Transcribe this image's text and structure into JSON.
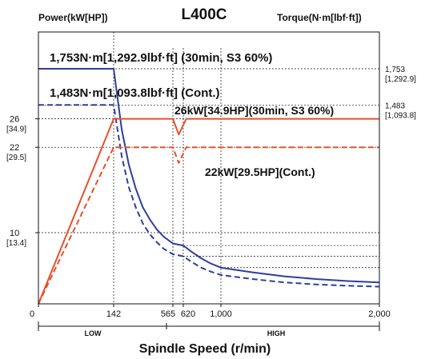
{
  "chart_data": {
    "type": "line",
    "title": "L400C",
    "left_axis_label": "Power(kW[HP])",
    "right_axis_label": "Torque(N·m[lbf·ft])",
    "xlabel": "Spindle Speed (r/min)",
    "xlim": [
      0,
      2000
    ],
    "x_ticks": [
      "0",
      "142",
      "565",
      "620",
      "1,000",
      "2,000"
    ],
    "power_ticks": [
      {
        "kw": 26,
        "label": "26",
        "sub": "[34.9]"
      },
      {
        "kw": 22,
        "label": "22",
        "sub": "[29.5]"
      },
      {
        "kw": 10,
        "label": "10",
        "sub": "[13.4]"
      }
    ],
    "torque_ticks": [
      {
        "nm": 1753,
        "label": "1,753",
        "sub": "[1,292.9]"
      },
      {
        "nm": 1483,
        "label": "1,483",
        "sub": "[1,093.8]"
      }
    ],
    "gear_ranges": [
      "LOW",
      "HIGH"
    ],
    "annotations": [
      "1,753N·m[1,292.9lbf·ft] (30min, S3 60%)",
      "1,483N·m[1,093.8lbf·ft] (Cont.)",
      "26kW[34.9HP](30min, S3 60%)",
      "22kW[29.5HP](Cont.)"
    ],
    "colors": {
      "torque": "#2e3f9c",
      "power": "#e8502a"
    },
    "series": [
      {
        "name": "Torque (30min, S3 60%)",
        "axis": "torque",
        "style": "solid",
        "color": "#2e3f9c",
        "x": [
          0,
          142,
          200,
          250,
          300,
          350,
          400,
          450,
          500,
          565,
          620,
          700,
          800,
          900,
          1000,
          1200,
          1400,
          1600,
          1800,
          2000
        ],
        "y": [
          1753,
          1753,
          1300,
          1040,
          860,
          720,
          630,
          555,
          500,
          450,
          435,
          390,
          340,
          300,
          270,
          235,
          205,
          185,
          170,
          160
        ]
      },
      {
        "name": "Torque (Cont.)",
        "axis": "torque",
        "style": "dashed",
        "color": "#2e3f9c",
        "x": [
          0,
          142,
          200,
          250,
          300,
          350,
          400,
          450,
          500,
          565,
          620,
          700,
          800,
          900,
          1000,
          1200,
          1400,
          1600,
          1800,
          2000
        ],
        "y": [
          1483,
          1483,
          1100,
          870,
          720,
          600,
          520,
          460,
          410,
          370,
          355,
          315,
          270,
          240,
          215,
          185,
          160,
          145,
          135,
          128
        ]
      },
      {
        "name": "Power (30min, S3 60%)",
        "axis": "power",
        "style": "solid",
        "color": "#e8502a",
        "x": [
          0,
          142,
          565,
          596,
          650,
          2000
        ],
        "y": [
          0,
          26,
          26,
          23.8,
          26,
          26
        ]
      },
      {
        "name": "Power (Cont.)",
        "axis": "power",
        "style": "dashed",
        "color": "#e8502a",
        "x": [
          0,
          142,
          565,
          596,
          650,
          2000
        ],
        "y": [
          0,
          22,
          22,
          19.8,
          22,
          22
        ]
      }
    ]
  }
}
